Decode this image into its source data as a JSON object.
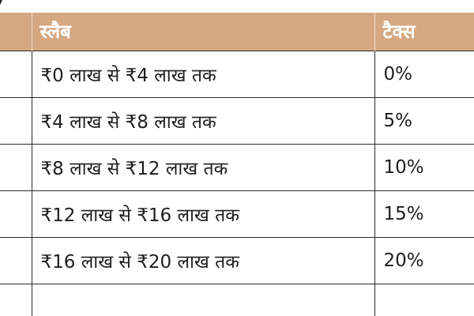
{
  "table": {
    "headers": {
      "slab": "स्लैब",
      "tax": "टैक्स"
    },
    "rows": [
      {
        "slab": "₹0 लाख से ₹4 लाख तक",
        "tax": "0%"
      },
      {
        "slab": "₹4 लाख से ₹8 लाख तक",
        "tax": "5%"
      },
      {
        "slab": "₹8 लाख से ₹12 लाख तक",
        "tax": "10%"
      },
      {
        "slab": "₹12 लाख से ₹16 लाख तक",
        "tax": "15%"
      },
      {
        "slab": "₹16 लाख से ₹20 लाख तक",
        "tax": "20%"
      }
    ]
  },
  "colors": {
    "header_background": "#d6a882",
    "header_text": "#ffffff",
    "grid_lines": "#2b2b2b",
    "body_text": "#1e1e1e"
  }
}
